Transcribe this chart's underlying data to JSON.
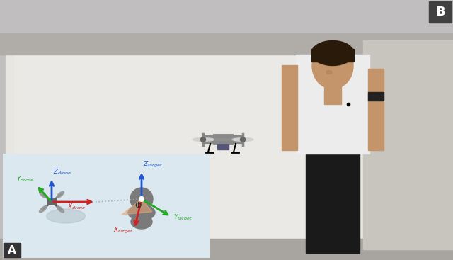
{
  "fig_width": 6.4,
  "fig_height": 3.67,
  "dpi": 100,
  "bg_color": "#c0bebe",
  "wall_color": "#d8d5ce",
  "whiteboard_color": "#e8e6e0",
  "floor_color": "#a8a5a0",
  "label_B_bg": "#404040",
  "label_B_color": "#ffffff",
  "inset_bg": "#dce8f0",
  "inset_border": "#444444",
  "label_A_bg": "#333333",
  "label_A_color": "#ffffff",
  "drone_color": "#888888",
  "person_skin": "#c4956a",
  "person_hair": "#2a1a0a",
  "person_shirt": "#ececec",
  "person_pants": "#1a1a1a",
  "arrow_drone_z": "#2255cc",
  "arrow_drone_y": "#22aa22",
  "arrow_drone_x": "#cc2222",
  "arrow_target_z": "#2255cc",
  "arrow_target_y": "#22aa22",
  "arrow_target_x": "#cc2222",
  "phi_color": "#e8a878",
  "dot_line_color": "#aaaaaa"
}
